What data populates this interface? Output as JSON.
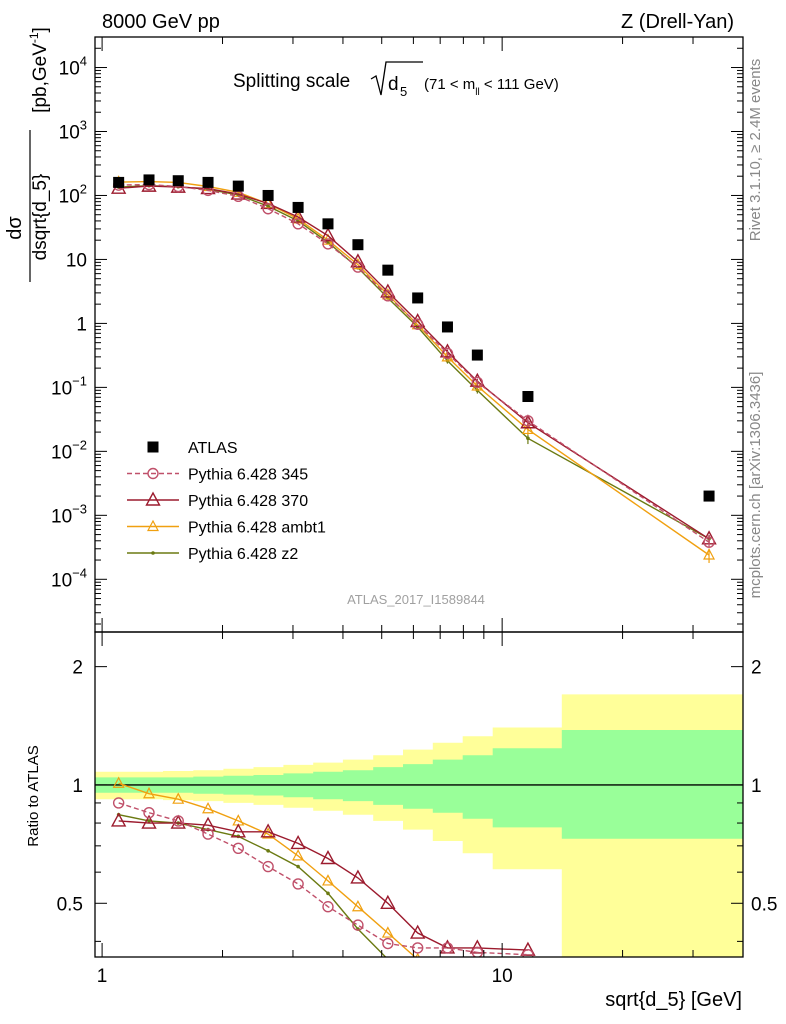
{
  "header": {
    "left_label": "8000 GeV pp",
    "right_label": "Z (Drell-Yan)"
  },
  "side_labels": {
    "rivet": "Rivet 3.1.10, ≥ 2.4M events",
    "mcplots": "mcplots.cern.ch [arXiv:1306.3436]"
  },
  "colors": {
    "ATLAS": "#000000",
    "Pythia 6.428 345": "#c0506a",
    "Pythia 6.428 370": "#9c1b2e",
    "Pythia 6.428 ambt1": "#f0a010",
    "Pythia 6.428 z2": "#6b7a12",
    "band_inner": "#99ff99",
    "band_outer": "#ffff99"
  },
  "chart_data": [
    {
      "type": "scatter",
      "panel": "main",
      "title": "Splitting scale",
      "title_sqrt": "d",
      "title_sub": "5",
      "title_cut_pre": "(71 < m",
      "title_cut_sub": "ll",
      "title_cut_post": " < 111 GeV)",
      "ylabel_num": "dσ",
      "ylabel_den": "dsqrt{d_5}",
      "ylabel_unit": "[pb,GeV",
      "ylabel_unit_sup": "-1",
      "ylabel_unit_end": "]",
      "x_scale": "log",
      "y_scale": "log",
      "xlim": [
        0.96,
        40
      ],
      "ylim": [
        1.5e-05,
        30000
      ],
      "y_ticks": [
        {
          "value": 10000,
          "base": "10",
          "exp": "4"
        },
        {
          "value": 1000,
          "base": "10",
          "exp": "3"
        },
        {
          "value": 100,
          "base": "10",
          "exp": "2"
        },
        {
          "value": 10,
          "base": "10",
          "exp": ""
        },
        {
          "value": 1,
          "base": "1",
          "exp": ""
        },
        {
          "value": 0.1,
          "base": "10",
          "exp": "−1"
        },
        {
          "value": 0.01,
          "base": "10",
          "exp": "−2"
        },
        {
          "value": 0.001,
          "base": "10",
          "exp": "−3"
        },
        {
          "value": 0.0001,
          "base": "10",
          "exp": "−4"
        }
      ],
      "legend_position": "left, below middle",
      "watermark": "ATLAS_2017_I1589844",
      "x": [
        1.1,
        1.31,
        1.55,
        1.84,
        2.19,
        2.6,
        3.09,
        3.67,
        4.36,
        5.18,
        6.15,
        7.3,
        8.67,
        11.6,
        32.9
      ],
      "series": [
        {
          "name": "ATLAS",
          "marker": "square",
          "line": "none",
          "values": [
            160,
            175,
            170,
            160,
            140,
            100,
            65,
            36,
            17,
            6.8,
            2.5,
            0.88,
            0.32,
            0.072,
            0.002
          ]
        },
        {
          "name": "Pythia 6.428 345",
          "marker": "circle",
          "line": "dashed",
          "values": [
            145,
            148,
            138,
            120,
            97,
            62,
            36,
            17.5,
            7.6,
            2.7,
            0.97,
            0.34,
            0.12,
            0.03,
            0.00038
          ],
          "error": [
            0,
            0,
            0,
            0,
            0,
            0,
            0,
            0,
            0,
            0,
            0,
            0.03,
            0.012,
            0.004,
            6e-05
          ]
        },
        {
          "name": "Pythia 6.428 370",
          "marker": "triangle",
          "line": "solid",
          "values": [
            130,
            140,
            135,
            128,
            105,
            75,
            46,
            23.5,
            9.2,
            3.1,
            1.07,
            0.36,
            0.125,
            0.028,
            0.00043
          ],
          "error": [
            0,
            0,
            0,
            0,
            0,
            0,
            0,
            0,
            0,
            0,
            0,
            0.03,
            0.012,
            0.004,
            6e-05
          ]
        },
        {
          "name": "Pythia 6.428 ambt1",
          "marker": "small-triangle",
          "line": "solid",
          "values": [
            162,
            165,
            160,
            138,
            112,
            74,
            43,
            20,
            8.3,
            2.8,
            0.95,
            0.3,
            0.105,
            0.022,
            0.00024
          ],
          "error": [
            0,
            0,
            0,
            0,
            0,
            0,
            0,
            0,
            0,
            0,
            0,
            0.03,
            0.01,
            0.004,
            6e-05
          ]
        },
        {
          "name": "Pythia 6.428 z2",
          "marker": "dot",
          "line": "solid",
          "values": [
            135,
            142,
            137,
            125,
            102,
            68,
            40,
            18.5,
            7.4,
            2.5,
            0.88,
            0.26,
            0.09,
            0.016,
            0.00043
          ],
          "error": [
            0,
            0,
            0,
            0,
            0,
            0,
            0,
            0,
            0,
            0,
            0,
            0.025,
            0.01,
            0.003,
            6e-05
          ]
        }
      ]
    },
    {
      "type": "line",
      "panel": "ratio",
      "ylabel": "Ratio to ATLAS",
      "xlabel": "sqrt{d_5} [GeV]",
      "x_scale": "log",
      "y_scale": "log",
      "xlim": [
        0.96,
        40
      ],
      "ylim": [
        0.365,
        2.45
      ],
      "y_ticks": [
        {
          "value": 0.5,
          "label": "0.5"
        },
        {
          "value": 1,
          "label": "1"
        },
        {
          "value": 2,
          "label": "2"
        }
      ],
      "x_ticks": [
        {
          "value": 1,
          "label": "1"
        },
        {
          "value": 10,
          "label": "10"
        }
      ],
      "bin_edges": [
        0.96,
        1.2,
        1.42,
        1.69,
        2.01,
        2.39,
        2.84,
        3.37,
        4.0,
        4.76,
        5.65,
        6.71,
        7.97,
        9.47,
        14.1,
        40
      ],
      "band_inner": {
        "low": [
          0.955,
          0.955,
          0.955,
          0.95,
          0.945,
          0.94,
          0.93,
          0.92,
          0.91,
          0.89,
          0.87,
          0.85,
          0.82,
          0.78,
          0.73
        ],
        "high": [
          1.045,
          1.045,
          1.045,
          1.05,
          1.055,
          1.06,
          1.07,
          1.08,
          1.09,
          1.11,
          1.13,
          1.16,
          1.19,
          1.24,
          1.38
        ]
      },
      "band_outer": {
        "low": [
          0.92,
          0.92,
          0.915,
          0.91,
          0.9,
          0.89,
          0.875,
          0.86,
          0.84,
          0.81,
          0.77,
          0.72,
          0.67,
          0.61,
          0.35
        ],
        "high": [
          1.08,
          1.08,
          1.085,
          1.09,
          1.1,
          1.11,
          1.125,
          1.14,
          1.16,
          1.19,
          1.23,
          1.28,
          1.33,
          1.4,
          1.7
        ]
      },
      "reference_line": 1,
      "series": [
        {
          "name": "Pythia 6.428 345",
          "x": [
            1.1,
            1.31,
            1.55,
            1.84,
            2.19,
            2.6,
            3.09,
            3.67,
            4.36,
            5.18,
            6.15,
            7.3,
            8.67,
            11.6
          ],
          "values": [
            0.9,
            0.85,
            0.81,
            0.75,
            0.69,
            0.62,
            0.56,
            0.49,
            0.44,
            0.395,
            0.385,
            0.385,
            0.375,
            0.37
          ]
        },
        {
          "name": "Pythia 6.428 370",
          "x": [
            1.1,
            1.31,
            1.55,
            1.84,
            2.19,
            2.6,
            3.09,
            3.67,
            4.36,
            5.18,
            6.15,
            7.3,
            8.67,
            11.6
          ],
          "values": [
            0.81,
            0.8,
            0.8,
            0.79,
            0.76,
            0.76,
            0.71,
            0.65,
            0.58,
            0.5,
            0.42,
            0.385,
            0.385,
            0.38
          ]
        },
        {
          "name": "Pythia 6.428 ambt1",
          "x": [
            1.1,
            1.31,
            1.55,
            1.84,
            2.19,
            2.6,
            3.09,
            3.67,
            4.36,
            5.18,
            6.15
          ],
          "values": [
            1.01,
            0.95,
            0.92,
            0.87,
            0.81,
            0.75,
            0.66,
            0.57,
            0.49,
            0.42,
            0.36
          ]
        },
        {
          "name": "Pythia 6.428 z2",
          "x": [
            1.1,
            1.31,
            1.55,
            1.84,
            2.19,
            2.6,
            3.09,
            3.67,
            4.36,
            5.18
          ],
          "values": [
            0.84,
            0.81,
            0.8,
            0.77,
            0.74,
            0.68,
            0.62,
            0.53,
            0.43,
            0.36
          ]
        }
      ]
    }
  ]
}
